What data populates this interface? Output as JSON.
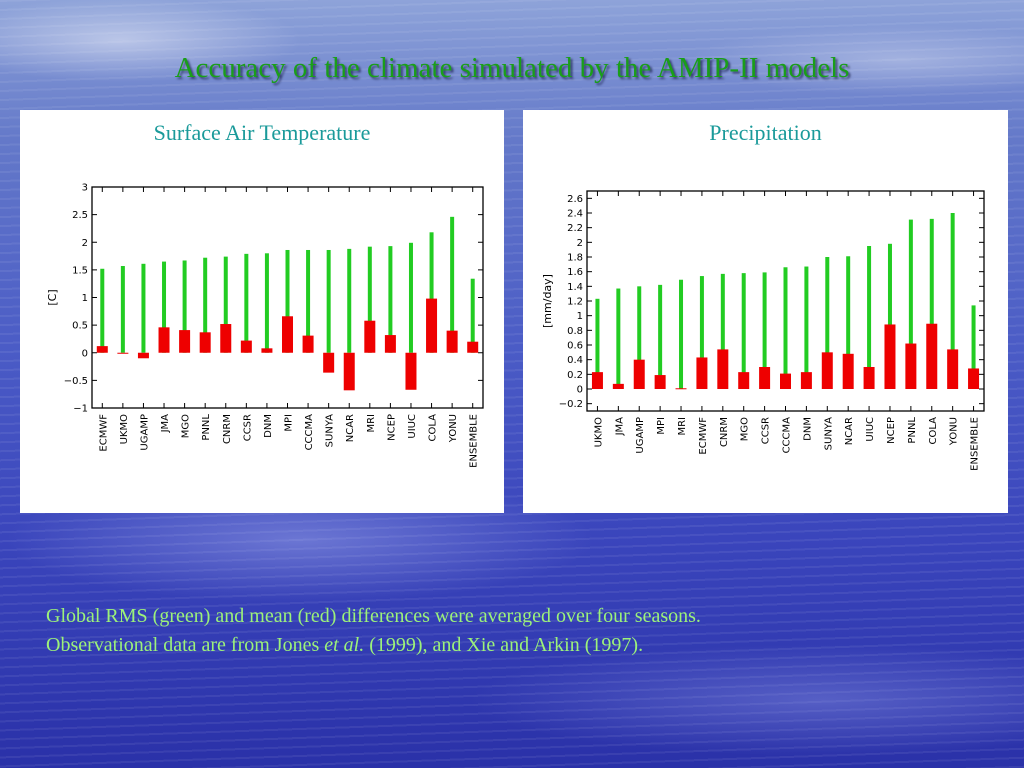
{
  "title": "Accuracy of the climate simulated by the AMIP-II models",
  "colors": {
    "rms": "#22cc22",
    "mean": "#ee0000",
    "title": "#1a9e1a",
    "panel_title": "#1a9a9a",
    "caption": "#9cf27a"
  },
  "chart_data": [
    {
      "type": "bar",
      "title": "Surface Air Temperature",
      "ylabel": "[C]",
      "ylim": [
        -1,
        3
      ],
      "yticks": [
        -1,
        -0.5,
        0,
        0.5,
        1,
        1.5,
        2,
        2.5,
        3
      ],
      "ytick_labels": [
        "−1",
        "−0.5",
        "0",
        "0.5",
        "1",
        "1.5",
        "2",
        "2.5",
        "3"
      ],
      "categories": [
        "ECMWF",
        "UKMO",
        "UGAMP",
        "JMA",
        "MGO",
        "PNNL",
        "CNRM",
        "CCSR",
        "DNM",
        "MPI",
        "CCCMA",
        "SUNYA",
        "NCAR",
        "MRI",
        "NCEP",
        "UIUC",
        "COLA",
        "YONU",
        "ENSEMBLE"
      ],
      "series": [
        {
          "name": "RMS",
          "values": [
            1.52,
            1.57,
            1.61,
            1.65,
            1.67,
            1.72,
            1.74,
            1.79,
            1.8,
            1.86,
            1.86,
            1.86,
            1.88,
            1.92,
            1.93,
            1.99,
            2.18,
            2.46,
            1.34
          ]
        },
        {
          "name": "mean",
          "values": [
            0.12,
            0.0,
            -0.1,
            0.46,
            0.41,
            0.37,
            0.52,
            0.22,
            0.08,
            0.66,
            0.31,
            -0.36,
            -0.68,
            0.58,
            0.32,
            -0.67,
            0.98,
            0.4,
            0.2
          ]
        }
      ]
    },
    {
      "type": "bar",
      "title": "Precipitation",
      "ylabel": "[mm/day]",
      "ylim": [
        -0.3,
        2.7
      ],
      "yticks": [
        -0.2,
        0,
        0.2,
        0.4,
        0.6,
        0.8,
        1,
        1.2,
        1.4,
        1.6,
        1.8,
        2,
        2.2,
        2.4,
        2.6
      ],
      "ytick_labels": [
        "−0.2",
        "0",
        "0.2",
        "0.4",
        "0.6",
        "0.8",
        "1",
        "1.2",
        "1.4",
        "1.6",
        "1.8",
        "2",
        "2.2",
        "2.4",
        "2.6"
      ],
      "categories": [
        "UKMO",
        "JMA",
        "UGAMP",
        "MPI",
        "MRI",
        "ECMWF",
        "CNRM",
        "MGO",
        "CCSR",
        "CCCMA",
        "DNM",
        "SUNYA",
        "NCAR",
        "UIUC",
        "NCEP",
        "PNNL",
        "COLA",
        "YONU",
        "ENSEMBLE"
      ],
      "series": [
        {
          "name": "RMS",
          "values": [
            1.23,
            1.37,
            1.4,
            1.42,
            1.49,
            1.54,
            1.57,
            1.58,
            1.59,
            1.66,
            1.67,
            1.8,
            1.81,
            1.95,
            1.98,
            2.31,
            2.32,
            2.4,
            1.14
          ]
        },
        {
          "name": "mean",
          "values": [
            0.23,
            0.07,
            0.4,
            0.19,
            0.01,
            0.43,
            0.54,
            0.23,
            0.3,
            0.21,
            0.23,
            0.5,
            0.48,
            0.3,
            0.88,
            0.62,
            0.89,
            0.54,
            0.28
          ]
        }
      ]
    }
  ],
  "caption": {
    "line1": "Global RMS (green) and mean (red) differences were averaged over four seasons.",
    "line2_a": "Observational data are from Jones ",
    "line2_b": "et al.",
    "line2_c": " (1999), and Xie and Arkin (1997)."
  }
}
